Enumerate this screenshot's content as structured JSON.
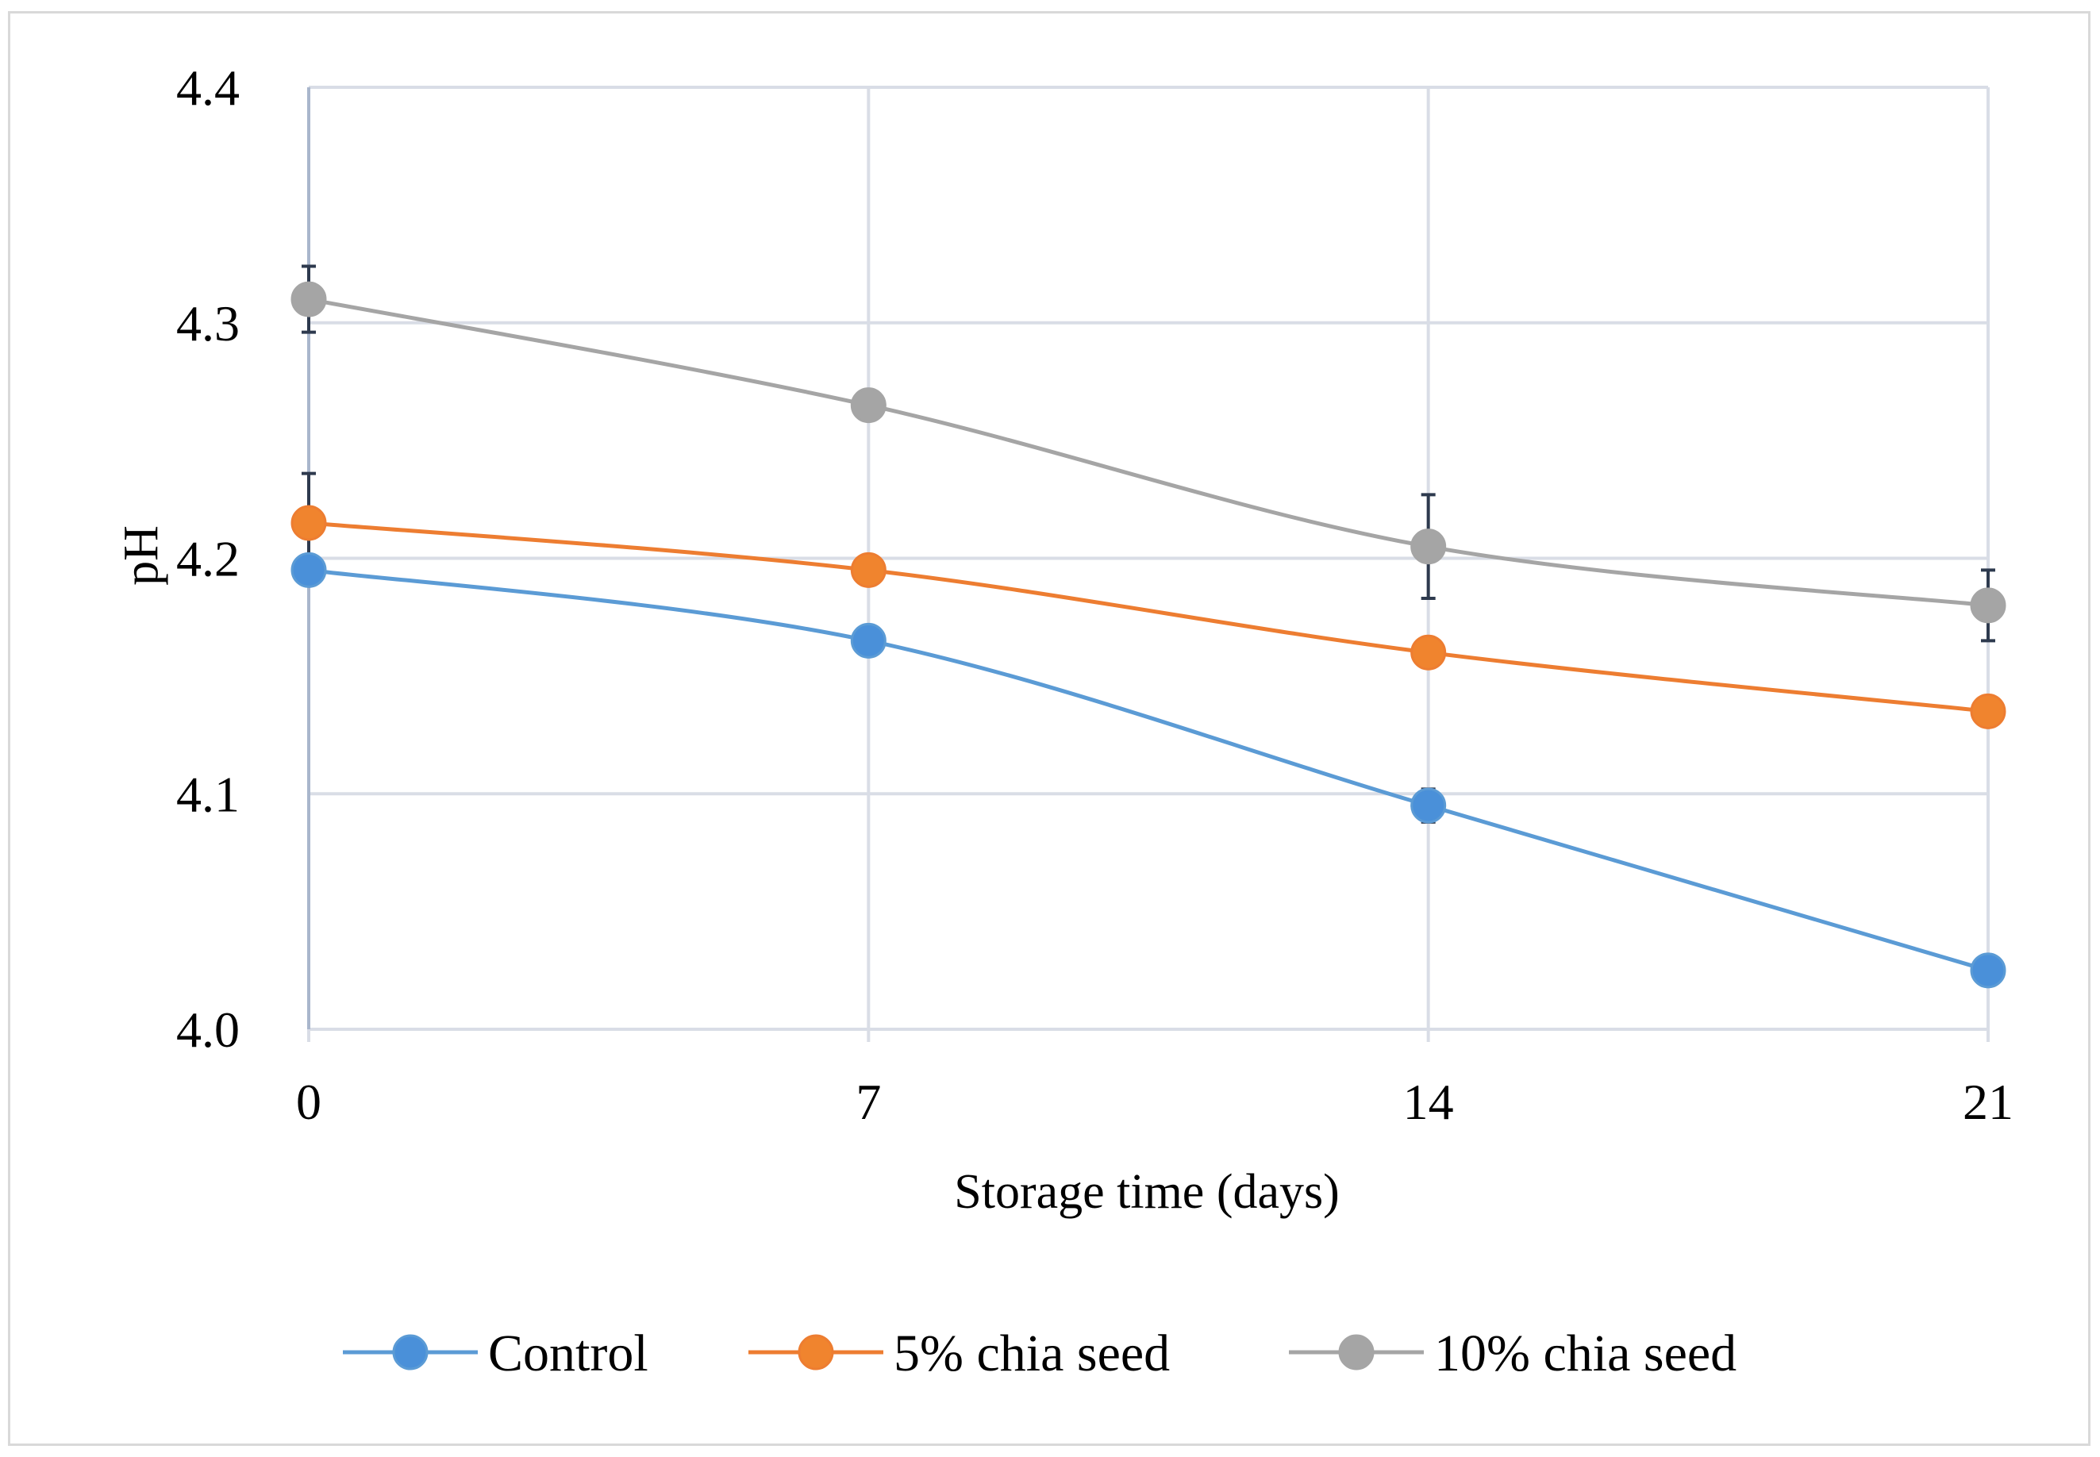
{
  "chart_data": {
    "type": "line",
    "title": "",
    "xlabel": "Storage time (days)",
    "ylabel": "pH",
    "x": [
      0,
      7,
      14,
      21
    ],
    "x_tick_labels": [
      "0",
      "7",
      "14",
      "21"
    ],
    "ylim": [
      4.0,
      4.4
    ],
    "y_ticks": [
      4.0,
      4.1,
      4.2,
      4.3,
      4.4
    ],
    "y_tick_labels": [
      "4.0",
      "4.1",
      "4.2",
      "4.3",
      "4.4"
    ],
    "grid": true,
    "smooth": true,
    "legend_position": "bottom",
    "series": [
      {
        "name": "Control",
        "color": "#5b9bd5",
        "marker_color": "#4a90d9",
        "values": [
          4.195,
          4.165,
          4.095,
          4.025
        ],
        "errors": [
          0.006,
          0.006,
          0.007,
          0.005
        ]
      },
      {
        "name": "5% chia seed",
        "color": "#ed7d31",
        "marker_color": "#f0842e",
        "values": [
          4.215,
          4.195,
          4.16,
          4.135
        ],
        "errors": [
          0.021,
          0.006,
          0.004,
          0.006
        ]
      },
      {
        "name": "10% chia seed",
        "color": "#a5a5a5",
        "marker_color": "#a5a5a5",
        "values": [
          4.31,
          4.265,
          4.205,
          4.18
        ],
        "errors": [
          0.014,
          0.005,
          0.022,
          0.015
        ]
      }
    ],
    "colors": {
      "grid": "#d9dde6",
      "y_axis": "#a9b6cc",
      "error_bar": "#2e3a4e"
    }
  }
}
